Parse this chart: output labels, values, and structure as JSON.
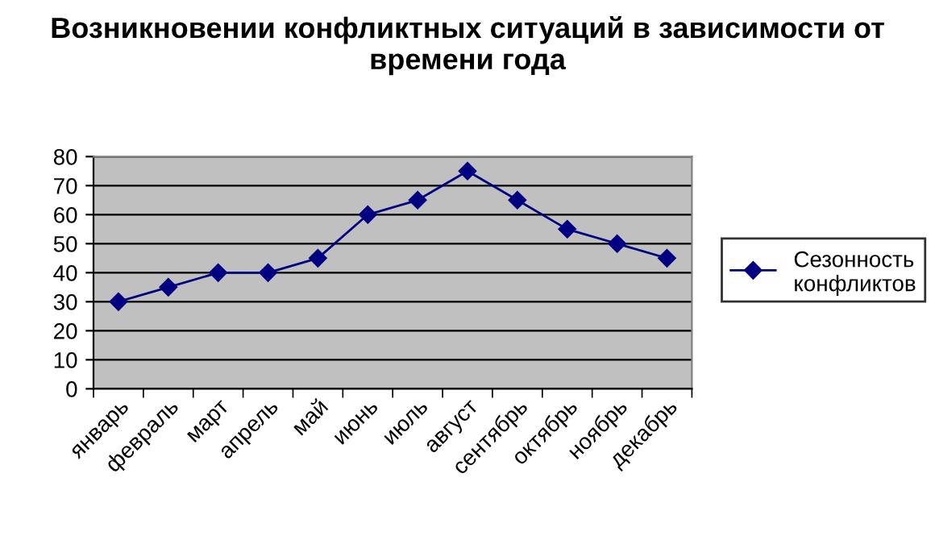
{
  "chart_data": {
    "type": "line",
    "title": "Возникновении конфликтных ситуаций в зависимости от времени года",
    "categories": [
      "январь",
      "февраль",
      "март",
      "апрель",
      "май",
      "июнь",
      "июль",
      "август",
      "сентябрь",
      "октябрь",
      "ноябрь",
      "декабрь"
    ],
    "series": [
      {
        "name": "Сезонность конфликтов",
        "color": "#000080",
        "values": [
          30,
          35,
          40,
          40,
          45,
          60,
          65,
          75,
          65,
          55,
          50,
          45
        ]
      }
    ],
    "ylim": [
      0,
      80
    ],
    "yticks": [
      0,
      10,
      20,
      30,
      40,
      50,
      60,
      70,
      80
    ],
    "grid": "y",
    "legend": "right",
    "marker": "diamond",
    "line_style": "solid"
  }
}
